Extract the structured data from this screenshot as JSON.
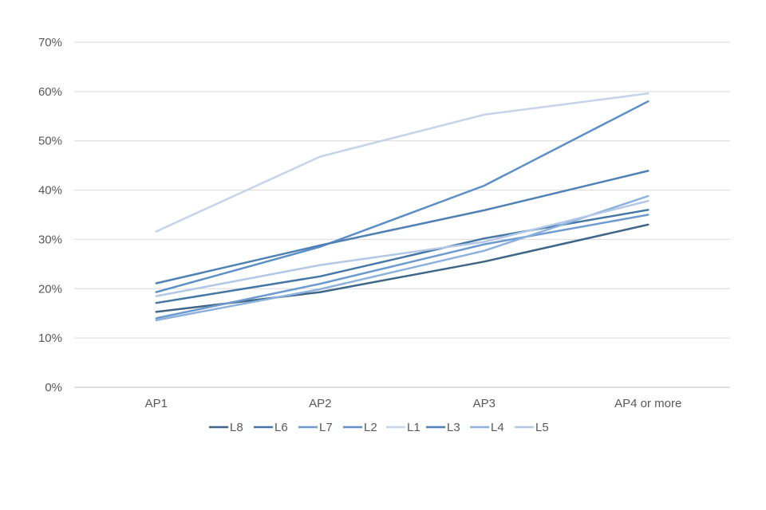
{
  "chart_data": {
    "type": "line",
    "categories": [
      "AP1",
      "AP2",
      "AP3",
      "AP4 or more"
    ],
    "ylim": [
      0,
      70
    ],
    "yticks": [
      "0%",
      "10%",
      "20%",
      "30%",
      "40%",
      "50%",
      "60%",
      "70%"
    ],
    "grid": "horizontal",
    "legend_position": "bottom",
    "series": [
      {
        "name": "L8",
        "color": "#3e6687",
        "values": [
          15.3,
          19.3,
          25.5,
          33.0
        ]
      },
      {
        "name": "L6",
        "color": "#4577a5",
        "values": [
          17.1,
          22.5,
          30.2,
          36.0
        ]
      },
      {
        "name": "L7",
        "color": "#6d9bd0",
        "values": [
          14.0,
          21.0,
          29.0,
          35.0
        ]
      },
      {
        "name": "L2",
        "color": "#5b8fc6",
        "values": [
          19.3,
          28.5,
          40.9,
          58.0
        ]
      },
      {
        "name": "L1",
        "color": "#c5d4e9",
        "values": [
          31.6,
          46.8,
          55.3,
          59.6
        ]
      },
      {
        "name": "L3",
        "color": "#4f81b4",
        "values": [
          21.1,
          28.8,
          35.9,
          43.9
        ]
      },
      {
        "name": "L4",
        "color": "#8db1dd",
        "values": [
          13.6,
          19.9,
          27.7,
          38.8
        ]
      },
      {
        "name": "L5",
        "color": "#b2c8e6",
        "values": [
          18.5,
          24.8,
          29.5,
          37.8
        ]
      }
    ]
  }
}
